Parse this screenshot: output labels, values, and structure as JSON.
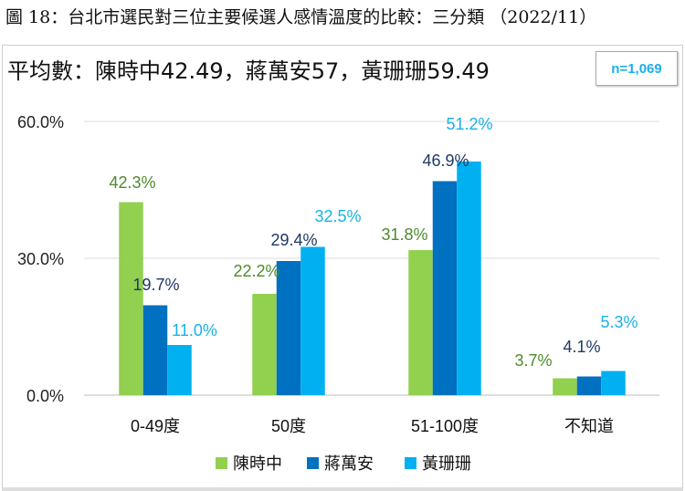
{
  "figure_title": "圖 18：台北市選民對三位主要候選人感情溫度的比較：三分類 （2022/11）",
  "subtitle": "平均數：陳時中42.49，蔣萬安57，黃珊珊59.49",
  "sample_size": "n=1,069",
  "chart_data": {
    "type": "bar",
    "categories": [
      "0-49度",
      "50度",
      "51-100度",
      "不知道"
    ],
    "series": [
      {
        "name": "陳時中",
        "values": [
          42.3,
          22.2,
          31.8,
          3.7
        ],
        "labels": [
          "42.3%",
          "22.2%",
          "31.8%",
          "3.7%"
        ],
        "color": "#92d050",
        "label_color": "#4f8a2b"
      },
      {
        "name": "蔣萬安",
        "values": [
          19.7,
          29.4,
          46.9,
          4.1
        ],
        "labels": [
          "19.7%",
          "29.4%",
          "46.9%",
          "4.1%"
        ],
        "color": "#0070c0",
        "label_color": "#1f3864"
      },
      {
        "name": "黃珊珊",
        "values": [
          11.0,
          32.5,
          51.2,
          5.3
        ],
        "labels": [
          "11.0%",
          "32.5%",
          "51.2%",
          "5.3%"
        ],
        "color": "#00b0f0",
        "label_color": "#1ab0e8"
      }
    ],
    "yticks": [
      "0.0%",
      "30.0%",
      "60.0%"
    ],
    "ytick_values": [
      0,
      30,
      60
    ],
    "ylim": [
      0,
      60
    ],
    "grid": true,
    "legend": "bottom"
  }
}
